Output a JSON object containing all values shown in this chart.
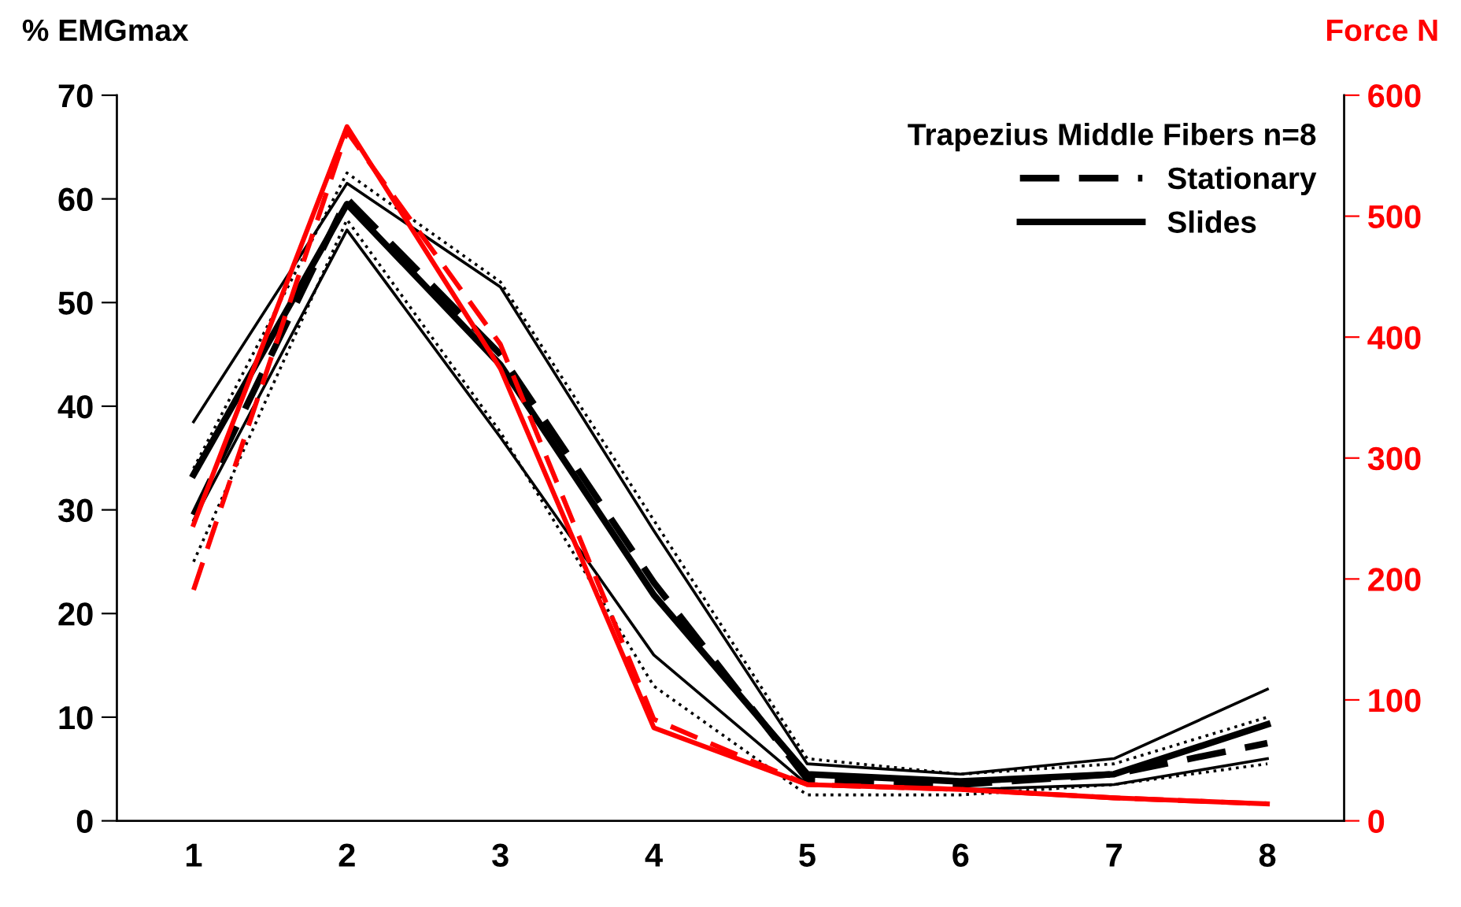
{
  "chart_data": {
    "type": "line",
    "ylabel": "% EMGmax",
    "y2label": "Force N",
    "legend_title": "Trapezius Middle Fibers n=8",
    "legend": "top right",
    "grid": false,
    "marker": "none",
    "categories": [
      "1",
      "2",
      "3",
      "4",
      "5",
      "6",
      "7",
      "8"
    ],
    "ylim": [
      0,
      70
    ],
    "yticks": [
      0,
      10,
      20,
      30,
      40,
      50,
      60,
      70
    ],
    "y2lim": [
      0,
      600
    ],
    "y2ticks": [
      0,
      100,
      200,
      300,
      400,
      500,
      600
    ],
    "series": [
      {
        "color": "#000000",
        "line_style": "solid",
        "values": [
          38.5,
          61.5,
          51.5,
          28,
          5.5,
          4.5,
          6,
          12.7
        ]
      },
      {
        "color": "#000000",
        "line_style": "solid",
        "values": [
          29,
          57,
          37,
          16,
          3.5,
          3,
          3.5,
          6
        ]
      },
      {
        "color": "#000000",
        "line_style": "dotted",
        "values": [
          34,
          62.5,
          52,
          29,
          6,
          4.5,
          5.5,
          10
        ]
      },
      {
        "color": "#000000",
        "line_style": "dotted",
        "values": [
          25,
          58,
          37.5,
          13,
          2.5,
          2.5,
          3.5,
          5.5
        ]
      },
      {
        "name": "Stationary",
        "color": "#000000",
        "line_style": "dashed",
        "values": [
          29.5,
          60,
          45,
          23,
          4,
          3.5,
          4.5,
          7.5
        ]
      },
      {
        "name": "Slides",
        "color": "#000000",
        "line_style": "solid",
        "values": [
          33.4,
          59.5,
          44,
          21.8,
          4.5,
          3.8,
          4.5,
          9.3
        ]
      },
      {
        "color": "#ff0000",
        "line_style": "dashed",
        "axis": "y2",
        "values": [
          191,
          570,
          394,
          84,
          30,
          26,
          19,
          14
        ]
      },
      {
        "color": "#ff0000",
        "line_style": "solid",
        "axis": "y2",
        "values": [
          245,
          574,
          374,
          77,
          30,
          26,
          19,
          14
        ]
      }
    ]
  }
}
